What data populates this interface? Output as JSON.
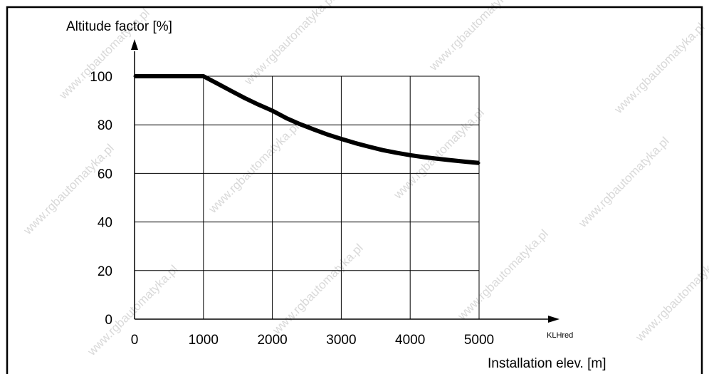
{
  "watermark": "www.rgbautomatyka.pl",
  "chart_data": {
    "type": "line",
    "title": "",
    "ylabel": "Altitude factor [%]",
    "xlabel": "Installation elev.  [m]",
    "reference": "KLHred",
    "xlim": [
      0,
      5000
    ],
    "ylim": [
      0,
      100
    ],
    "x_ticks": [
      0,
      1000,
      2000,
      3000,
      4000,
      5000
    ],
    "y_ticks": [
      0,
      20,
      40,
      60,
      80,
      100
    ],
    "grid": true,
    "series": [
      {
        "x": [
          0,
          1000,
          1200,
          1400,
          1600,
          1800,
          2000,
          2200,
          2400,
          2600,
          2800,
          3000,
          3200,
          3400,
          3600,
          3800,
          4000,
          4200,
          4400,
          4600,
          4800,
          5000
        ],
        "y": [
          100,
          100,
          97,
          94,
          91,
          88.3,
          85.8,
          82.8,
          80.3,
          78.1,
          76.0,
          74.2,
          72.5,
          71.0,
          69.6,
          68.5,
          67.5,
          66.7,
          66.0,
          65.4,
          64.8,
          64.3
        ]
      }
    ]
  }
}
